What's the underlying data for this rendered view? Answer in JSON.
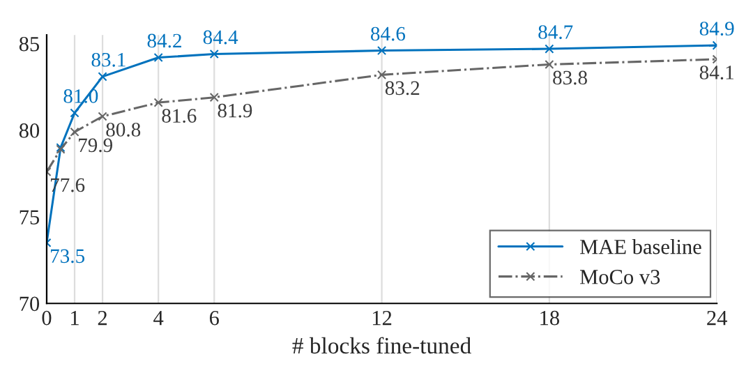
{
  "chart_data": {
    "type": "line",
    "xlabel": "# blocks fine-tuned",
    "series": [
      {
        "name": "MAE baseline",
        "color": "#0072bd",
        "line_style": "solid",
        "x": [
          0,
          0.5,
          1,
          2,
          4,
          6,
          12,
          18,
          24
        ],
        "values": [
          73.5,
          79.0,
          81.0,
          83.1,
          84.2,
          84.4,
          84.6,
          84.7,
          84.9
        ],
        "value_labels": [
          "73.5",
          null,
          "81.0",
          "83.1",
          "84.2",
          "84.4",
          "84.6",
          "84.7",
          "84.9"
        ]
      },
      {
        "name": "MoCo v3",
        "color": "#666666",
        "line_style": "dashdot",
        "x": [
          0,
          0.5,
          1,
          2,
          4,
          6,
          12,
          18,
          24
        ],
        "values": [
          77.6,
          78.9,
          79.9,
          80.8,
          81.6,
          81.9,
          83.2,
          83.8,
          84.1
        ],
        "value_labels": [
          "77.6",
          null,
          "79.9",
          "80.8",
          "81.6",
          "81.9",
          "83.2",
          "83.8",
          "84.1"
        ]
      }
    ],
    "xlim": [
      0,
      24
    ],
    "xticks": [
      0,
      1,
      2,
      4,
      6,
      12,
      18,
      24
    ],
    "ylim": [
      70,
      85.5
    ],
    "yticks": [
      70,
      75,
      80,
      85
    ],
    "grid": "x",
    "legend": "bottom right",
    "marker": "cross"
  }
}
